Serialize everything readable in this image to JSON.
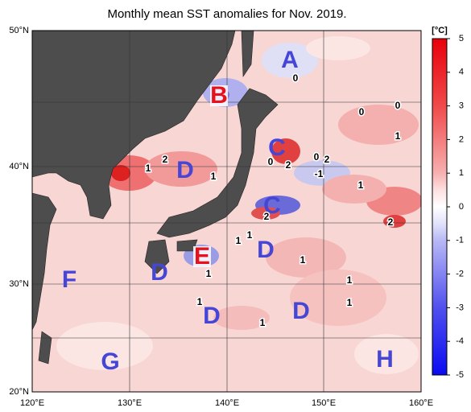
{
  "title": "Monthly mean SST anomalies for Nov. 2019.",
  "map": {
    "lat_labels": [
      "50°N",
      "40°N",
      "30°N",
      "20°N"
    ],
    "lon_labels": [
      "120°E",
      "130°E",
      "140°E",
      "150°E",
      "160°E"
    ],
    "region_labels": [
      {
        "text": "A",
        "kind": "cold"
      },
      {
        "text": "B",
        "kind": "warm"
      },
      {
        "text": "C",
        "kind": "cold"
      },
      {
        "text": "C",
        "kind": "cold"
      },
      {
        "text": "D",
        "kind": "cold"
      },
      {
        "text": "D",
        "kind": "cold"
      },
      {
        "text": "D",
        "kind": "cold"
      },
      {
        "text": "D",
        "kind": "cold"
      },
      {
        "text": "D",
        "kind": "cold"
      },
      {
        "text": "E",
        "kind": "warm"
      },
      {
        "text": "F",
        "kind": "cold"
      },
      {
        "text": "G",
        "kind": "cold"
      },
      {
        "text": "H",
        "kind": "cold"
      }
    ],
    "contour_labels": [
      "0",
      "0",
      "0",
      "1",
      "2",
      "1",
      "1",
      "2",
      "0",
      "0",
      "2",
      "-1",
      "1",
      "2",
      "2",
      "1",
      "1",
      "1",
      "1",
      "1",
      "1",
      "1",
      "1"
    ]
  },
  "colorbar": {
    "unit": "[°C]",
    "ticks": [
      5,
      4,
      3,
      2,
      1,
      0,
      -1,
      -2,
      -3,
      -4,
      -5
    ],
    "range": [
      -5,
      5
    ]
  }
}
